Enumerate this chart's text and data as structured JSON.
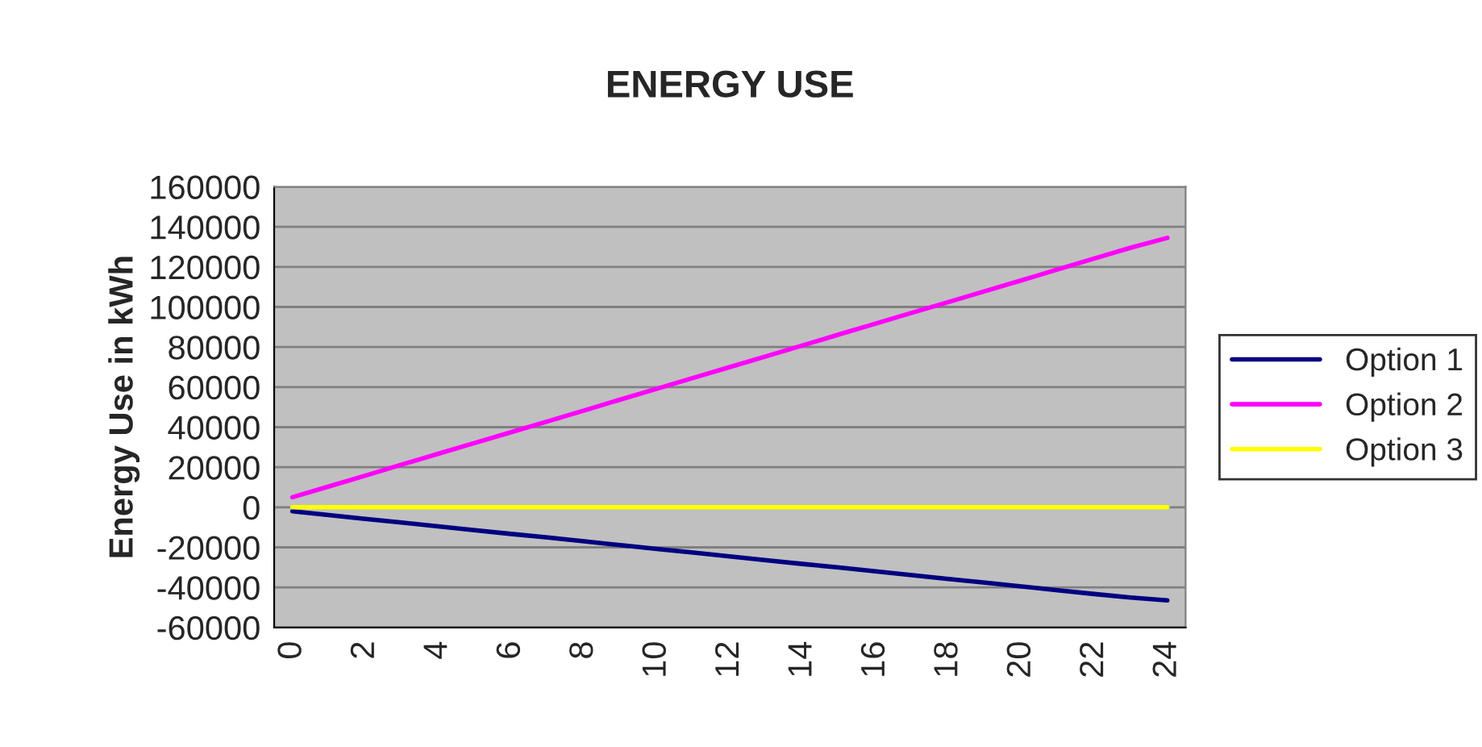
{
  "chart_data": {
    "type": "line",
    "title": "ENERGY USE",
    "ylabel": "Energy Use in kWh",
    "categories": [
      "0",
      null,
      "2",
      null,
      "4",
      null,
      "6",
      null,
      "8",
      null,
      "10",
      null,
      "12",
      null,
      "14",
      null,
      "16",
      null,
      "18",
      null,
      "20",
      null,
      "22",
      null,
      "24"
    ],
    "series": [
      {
        "name": "Option 1",
        "color": "#000080",
        "values": [
          -2000,
          -3900,
          -5800,
          -7600,
          -9500,
          -11400,
          -13300,
          -15100,
          -17000,
          -18900,
          -20800,
          -22600,
          -24500,
          -26400,
          -28300,
          -30100,
          -32000,
          -33900,
          -35800,
          -37600,
          -39500,
          -41400,
          -43300,
          -45100,
          -46500
        ]
      },
      {
        "name": "Option 2",
        "color": "#ff00ff",
        "values": [
          5000,
          10400,
          15800,
          21300,
          26700,
          32100,
          37500,
          42900,
          48300,
          53800,
          59200,
          64600,
          70000,
          75400,
          80800,
          86300,
          91700,
          97100,
          102500,
          107900,
          113300,
          118800,
          124200,
          129600,
          134500
        ]
      },
      {
        "name": "Option 3",
        "color": "#ffff00",
        "values": [
          0,
          0,
          0,
          0,
          0,
          0,
          0,
          0,
          0,
          0,
          0,
          0,
          0,
          0,
          0,
          0,
          0,
          0,
          0,
          0,
          0,
          0,
          0,
          0,
          0
        ]
      }
    ],
    "ylim": [
      -60000,
      160000
    ],
    "yticks": [
      -60000,
      -40000,
      -20000,
      0,
      20000,
      40000,
      60000,
      80000,
      100000,
      120000,
      140000,
      160000
    ],
    "grid": "y",
    "legend": "right",
    "marker": "none",
    "line_style": "solid"
  }
}
